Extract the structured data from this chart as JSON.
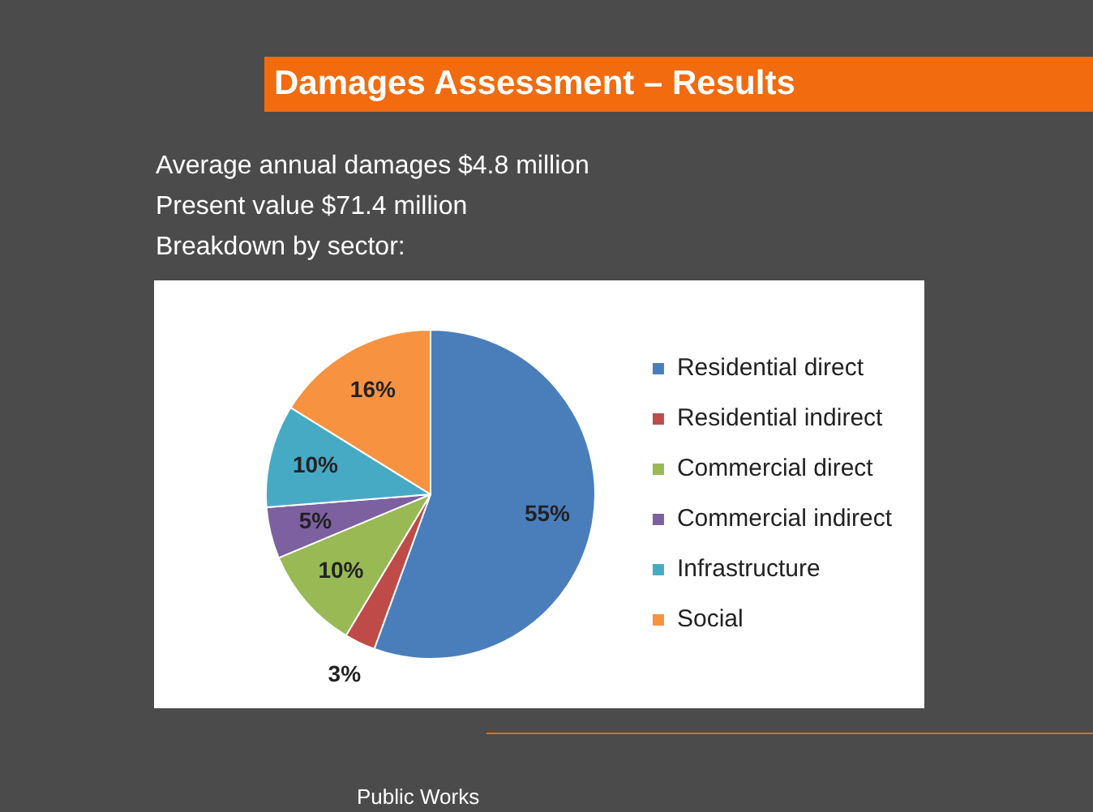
{
  "chart_data": {
    "type": "pie",
    "title": "Damages Assessment – Results",
    "categories": [
      "Residential direct",
      "Residential indirect",
      "Commercial direct",
      "Commercial indirect",
      "Infrastructure",
      "Social"
    ],
    "values": [
      55,
      3,
      10,
      5,
      10,
      16
    ],
    "colors": [
      "#4a7ebb",
      "#be4b48",
      "#98b954",
      "#7d60a0",
      "#46aac5",
      "#f69240"
    ],
    "value_labels": [
      "55%",
      "3%",
      "10%",
      "5%",
      "10%",
      "16%"
    ],
    "legend": "right",
    "annotations": [
      "Average annual damages $4.8 million",
      "Present value $71.4 million",
      "Breakdown by sector:",
      "Public Works"
    ]
  }
}
